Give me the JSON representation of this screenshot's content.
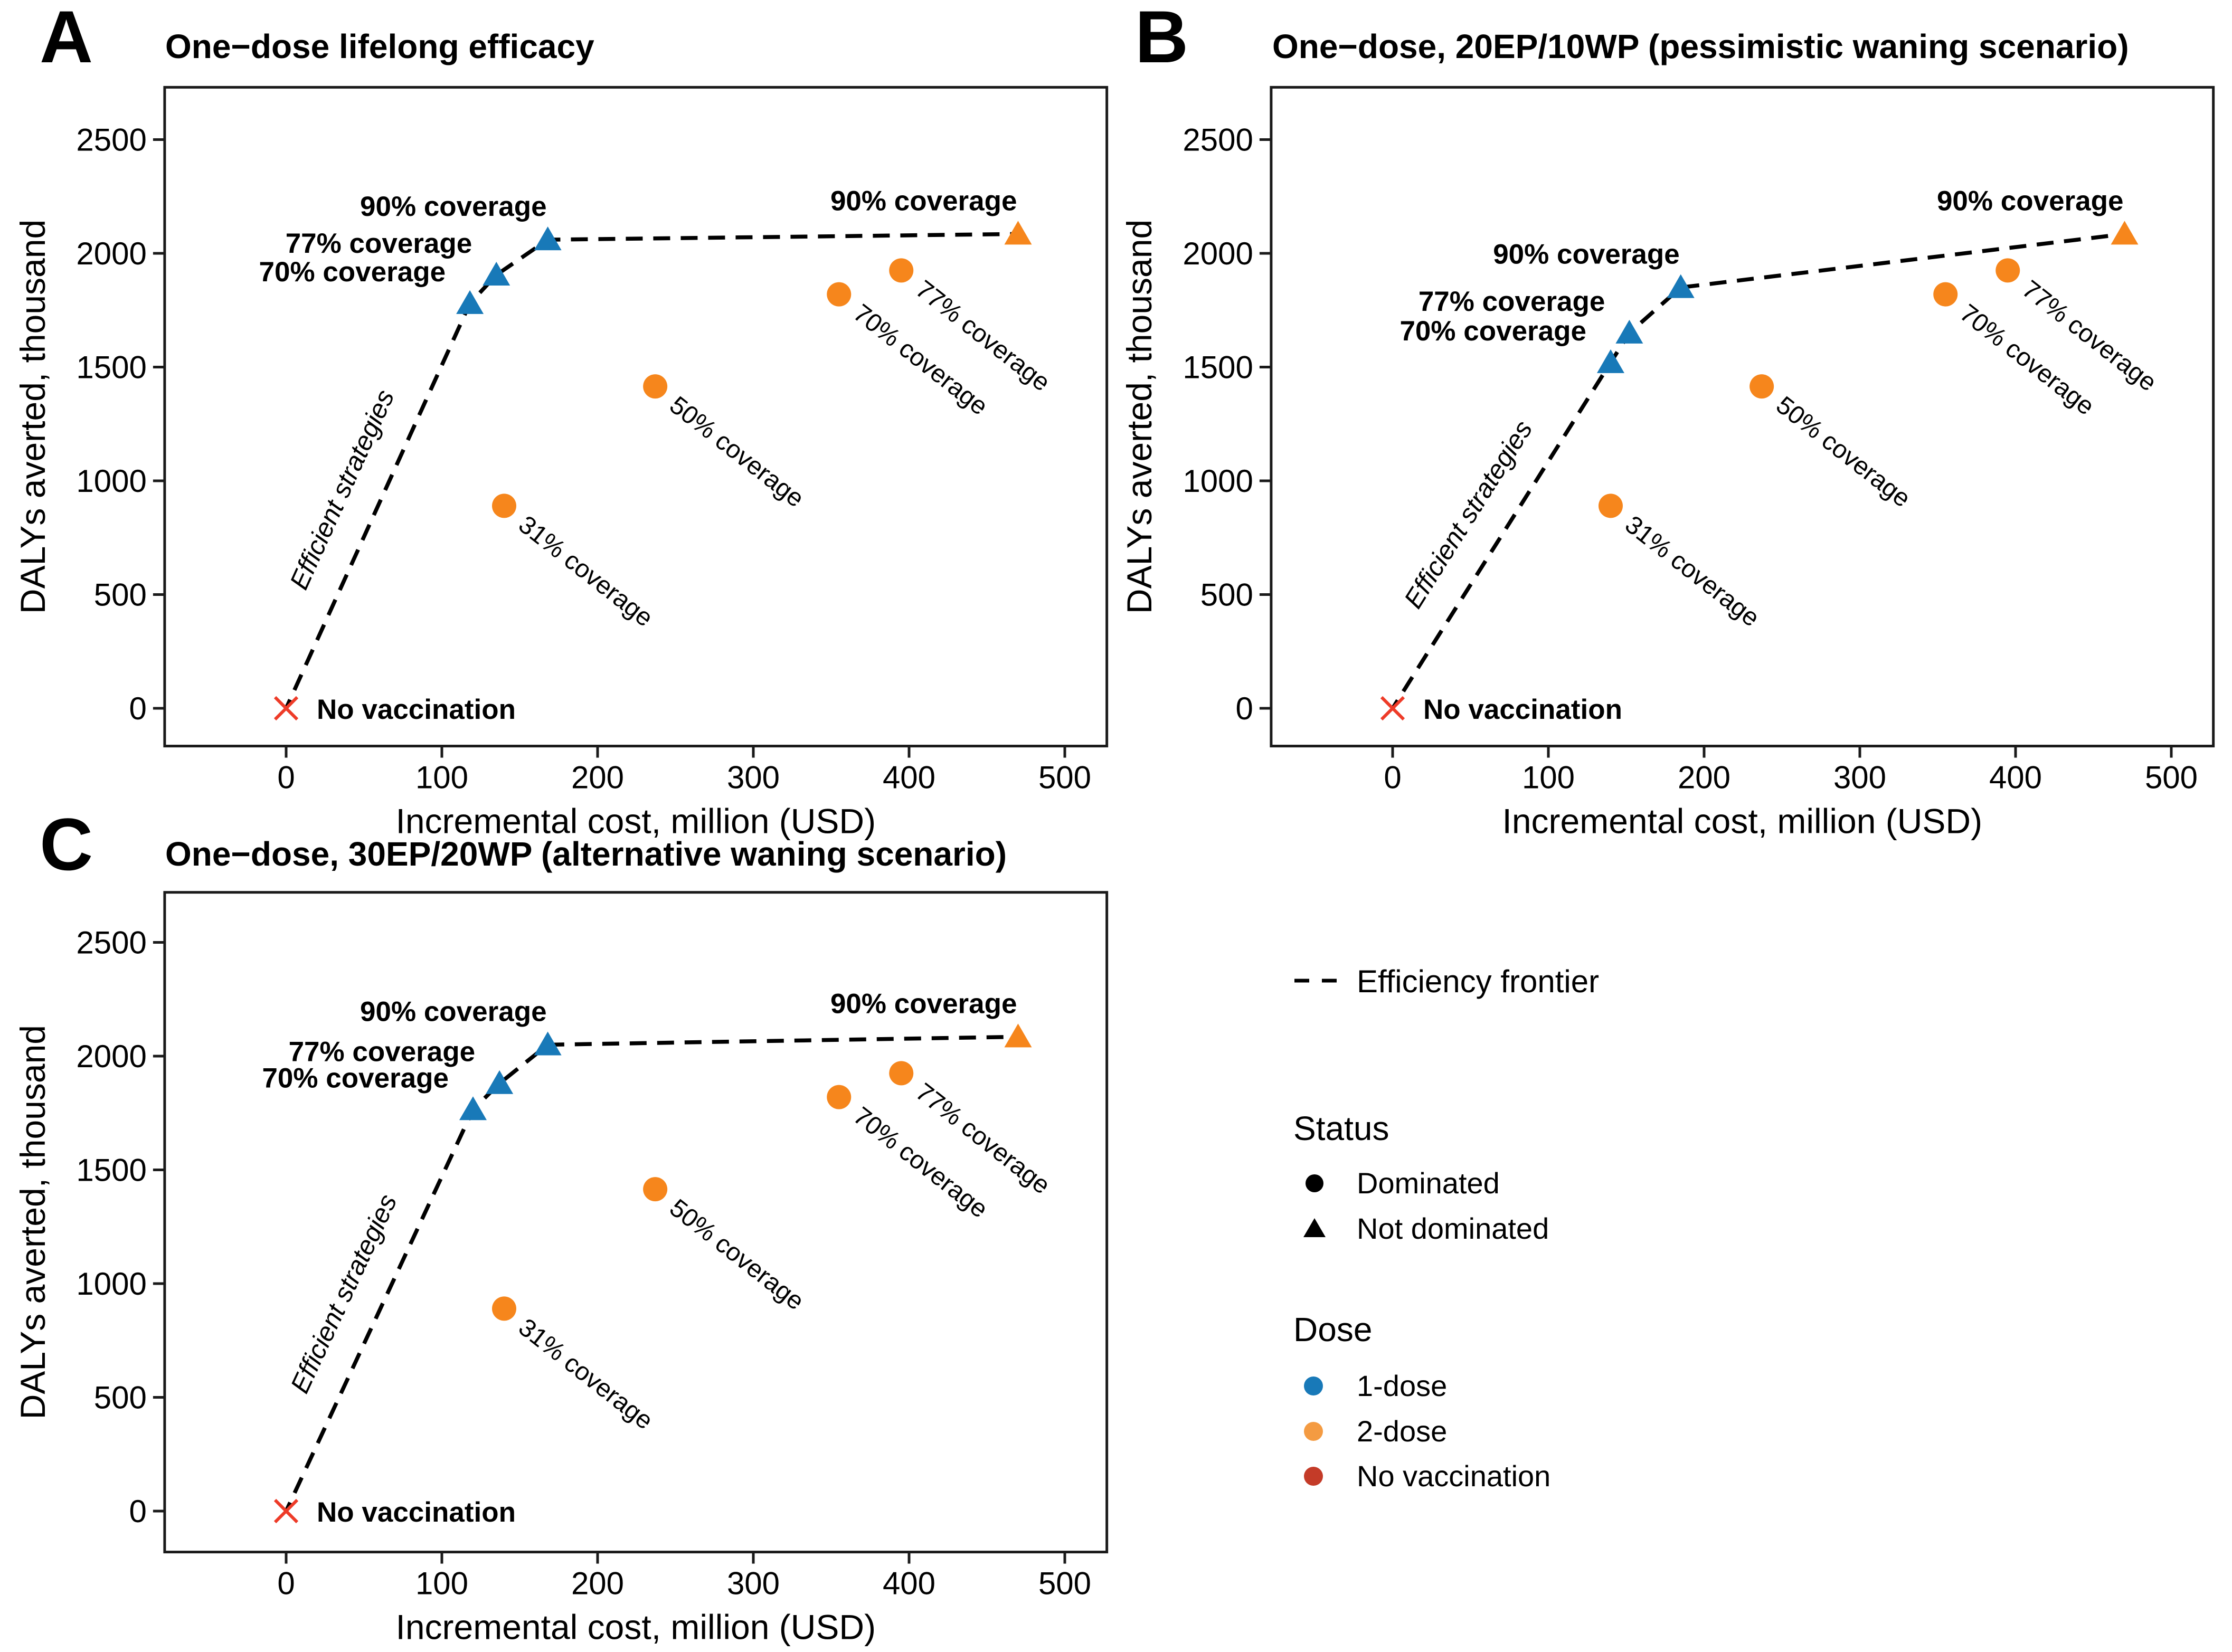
{
  "colors": {
    "one_dose": "#1879B8",
    "two_dose": "#F6861C",
    "two_dose_legend": "#F49B42",
    "no_vaccination_marker": "#EE3B28",
    "no_vaccination_legend": "#C43B28",
    "frontier": "#000000",
    "dominated_label_gray": "#ABABAB",
    "axis": "#1A1A1A"
  },
  "chart_data": [
    {
      "panel_label": "A",
      "type": "scatter",
      "title": "One−dose lifelong efficacy",
      "xlabel": "Incremental cost, million (USD)",
      "ylabel": "DALYs averted, thousand",
      "xticks": [
        0,
        100,
        200,
        300,
        400,
        500
      ],
      "yticks": [
        0,
        500,
        1000,
        1500,
        2000,
        2500
      ],
      "xlim": [
        -78,
        527
      ],
      "ylim": [
        -166,
        2730
      ],
      "grid": false,
      "efficient_label": "Efficient strategies",
      "frontier": [
        [
          0,
          0
        ],
        [
          118,
          1780
        ],
        [
          135,
          1905
        ],
        [
          168,
          2060
        ],
        [
          470,
          2085
        ]
      ],
      "series": [
        {
          "name": "1-dose",
          "status": "Not dominated",
          "marker": "triangle",
          "color_key": "one_dose",
          "points": [
            {
              "x": 118,
              "y": 1780,
              "label": "70% coverage",
              "lp": "left-up"
            },
            {
              "x": 135,
              "y": 1905,
              "label": "77% coverage",
              "lp": "left-up"
            },
            {
              "x": 168,
              "y": 2060,
              "label": "90% coverage",
              "lp": "above"
            }
          ]
        },
        {
          "name": "2-dose",
          "status": "Dominated",
          "marker": "circle",
          "color_key": "two_dose",
          "points": [
            {
              "x": 140,
              "y": 890,
              "label": "31% coverage",
              "lp": "diag"
            },
            {
              "x": 237,
              "y": 1415,
              "label": "50% coverage",
              "lp": "diag"
            },
            {
              "x": 355,
              "y": 1820,
              "label": "70% coverage",
              "lp": "diag"
            },
            {
              "x": 395,
              "y": 1925,
              "label": "77% coverage",
              "lp": "diag"
            }
          ]
        },
        {
          "name": "2-dose",
          "status": "Not dominated",
          "marker": "triangle",
          "color_key": "two_dose",
          "points": [
            {
              "x": 470,
              "y": 2085,
              "label": "90% coverage",
              "lp": "above"
            }
          ]
        },
        {
          "name": "No vaccination",
          "status": "Reference",
          "marker": "x",
          "color_key": "no_vaccination_marker",
          "points": [
            {
              "x": 0,
              "y": 0,
              "label": "No vaccination",
              "lp": "right"
            }
          ]
        }
      ]
    },
    {
      "panel_label": "B",
      "type": "scatter",
      "title": "One−dose, 20EP/10WP (pessimistic waning scenario)",
      "xlabel": "Incremental cost, million (USD)",
      "ylabel": "DALYs averted, thousand",
      "xticks": [
        0,
        100,
        200,
        300,
        400,
        500
      ],
      "yticks": [
        0,
        500,
        1000,
        1500,
        2000,
        2500
      ],
      "xlim": [
        -78,
        527
      ],
      "ylim": [
        -166,
        2730
      ],
      "grid": false,
      "efficient_label": "Efficient strategies",
      "frontier": [
        [
          0,
          0
        ],
        [
          140,
          1520
        ],
        [
          152,
          1650
        ],
        [
          185,
          1850
        ],
        [
          470,
          2085
        ]
      ],
      "series": [
        {
          "name": "1-dose",
          "status": "Not dominated",
          "marker": "triangle",
          "color_key": "one_dose",
          "points": [
            {
              "x": 140,
              "y": 1520,
              "label": "70% coverage",
              "lp": "left-up"
            },
            {
              "x": 152,
              "y": 1650,
              "label": "77% coverage",
              "lp": "left-up"
            },
            {
              "x": 185,
              "y": 1850,
              "label": "90% coverage",
              "lp": "above"
            }
          ]
        },
        {
          "name": "2-dose",
          "status": "Dominated",
          "marker": "circle",
          "color_key": "two_dose",
          "points": [
            {
              "x": 140,
              "y": 890,
              "label": "31% coverage",
              "lp": "diag"
            },
            {
              "x": 237,
              "y": 1415,
              "label": "50% coverage",
              "lp": "diag"
            },
            {
              "x": 355,
              "y": 1820,
              "label": "70% coverage",
              "lp": "diag"
            },
            {
              "x": 395,
              "y": 1925,
              "label": "77% coverage",
              "lp": "diag"
            }
          ]
        },
        {
          "name": "2-dose",
          "status": "Not dominated",
          "marker": "triangle",
          "color_key": "two_dose",
          "points": [
            {
              "x": 470,
              "y": 2085,
              "label": "90% coverage",
              "lp": "above"
            }
          ]
        },
        {
          "name": "No vaccination",
          "status": "Reference",
          "marker": "x",
          "color_key": "no_vaccination_marker",
          "points": [
            {
              "x": 0,
              "y": 0,
              "label": "No vaccination",
              "lp": "right"
            }
          ]
        }
      ]
    },
    {
      "panel_label": "C",
      "type": "scatter",
      "title": "One−dose, 30EP/20WP (alternative waning scenario)",
      "xlabel": "Incremental cost, million (USD)",
      "ylabel": "DALYs averted, thousand",
      "xticks": [
        0,
        100,
        200,
        300,
        400,
        500
      ],
      "yticks": [
        0,
        500,
        1000,
        1500,
        2000,
        2500
      ],
      "xlim": [
        -78,
        527
      ],
      "ylim": [
        -180,
        2720
      ],
      "grid": false,
      "efficient_label": "Efficient strategies",
      "frontier": [
        [
          0,
          0
        ],
        [
          120,
          1765
        ],
        [
          137,
          1880
        ],
        [
          168,
          2050
        ],
        [
          470,
          2085
        ]
      ],
      "series": [
        {
          "name": "1-dose",
          "status": "Not dominated",
          "marker": "triangle",
          "color_key": "one_dose",
          "points": [
            {
              "x": 120,
              "y": 1765,
              "label": "70% coverage",
              "lp": "left-up"
            },
            {
              "x": 137,
              "y": 1880,
              "label": "77% coverage",
              "lp": "left-up"
            },
            {
              "x": 168,
              "y": 2050,
              "label": "90% coverage",
              "lp": "above"
            }
          ]
        },
        {
          "name": "2-dose",
          "status": "Dominated",
          "marker": "circle",
          "color_key": "two_dose",
          "points": [
            {
              "x": 140,
              "y": 890,
              "label": "31% coverage",
              "lp": "diag"
            },
            {
              "x": 237,
              "y": 1415,
              "label": "50% coverage",
              "lp": "diag"
            },
            {
              "x": 355,
              "y": 1820,
              "label": "70% coverage",
              "lp": "diag"
            },
            {
              "x": 395,
              "y": 1925,
              "label": "77% coverage",
              "lp": "diag"
            }
          ]
        },
        {
          "name": "2-dose",
          "status": "Not dominated",
          "marker": "triangle",
          "color_key": "two_dose",
          "points": [
            {
              "x": 470,
              "y": 2085,
              "label": "90% coverage",
              "lp": "above"
            }
          ]
        },
        {
          "name": "No vaccination",
          "status": "Reference",
          "marker": "x",
          "color_key": "no_vaccination_marker",
          "points": [
            {
              "x": 0,
              "y": 0,
              "label": "No vaccination",
              "lp": "right"
            }
          ]
        }
      ]
    }
  ],
  "legend": {
    "position": "bottom-right",
    "frontier_label": "Efficiency frontier",
    "status_title": "Status",
    "status_items": [
      {
        "marker": "circle",
        "label": "Dominated"
      },
      {
        "marker": "triangle",
        "label": "Not dominated"
      }
    ],
    "dose_title": "Dose",
    "dose_items": [
      {
        "label": "1-dose",
        "color": "#1879B8"
      },
      {
        "label": "2-dose",
        "color": "#F49B42"
      },
      {
        "label": "No vaccination",
        "color": "#C43B28"
      }
    ]
  }
}
